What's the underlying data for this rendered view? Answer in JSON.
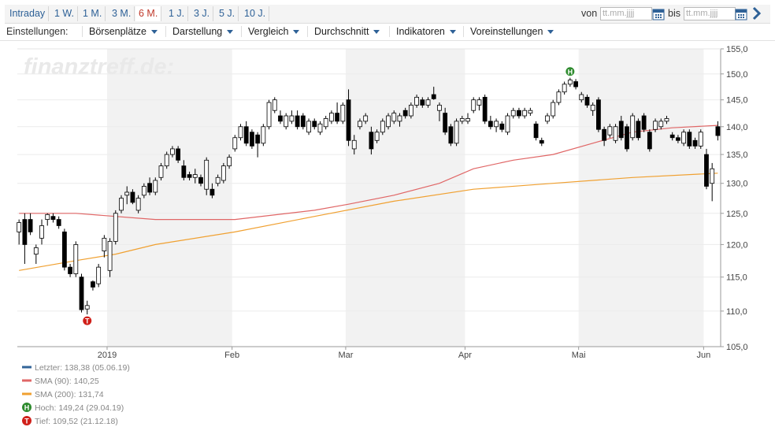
{
  "toolbar": {
    "periods": [
      "Intraday",
      "1 W.",
      "1 M.",
      "3 M.",
      "6 M.",
      "1 J.",
      "3 J.",
      "5 J.",
      "10 J."
    ],
    "active": "6 M.",
    "from_label": "von",
    "to_label": "bis",
    "date_placeholder": "tt.mm.jjjj"
  },
  "menu": {
    "label": "Einstellungen:",
    "items": [
      "Börsenplätze",
      "Darstellung",
      "Vergleich",
      "Durchschnitt",
      "Indikatoren",
      "Voreinstellungen"
    ]
  },
  "chart_data": {
    "type": "candlestick",
    "watermark": "finanztreff.de:",
    "log": true,
    "grid": true,
    "up_color": "#ffffff",
    "down_color": "#000000",
    "ylim": [
      105,
      155
    ],
    "yticks": [
      {
        "value": 105,
        "label": "105,0"
      },
      {
        "value": 110,
        "label": "110,0"
      },
      {
        "value": 115,
        "label": "115,0"
      },
      {
        "value": 120,
        "label": "120,0"
      },
      {
        "value": 125,
        "label": "125,0"
      },
      {
        "value": 130,
        "label": "130,0"
      },
      {
        "value": 135,
        "label": "135,0"
      },
      {
        "value": 140,
        "label": "140,0"
      },
      {
        "value": 145,
        "label": "145,0"
      },
      {
        "value": 150,
        "label": "150,0"
      },
      {
        "value": 155,
        "label": "155,0"
      }
    ],
    "xlim": [
      -0.3,
      123.5
    ],
    "xticks": [
      {
        "value": 15.5,
        "label": "2019"
      },
      {
        "value": 37.5,
        "label": "Feb"
      },
      {
        "value": 57.5,
        "label": "Mar"
      },
      {
        "value": 78.5,
        "label": "Apr"
      },
      {
        "value": 98.5,
        "label": "Mai"
      },
      {
        "value": 120.5,
        "label": "Jun"
      }
    ],
    "candles": [
      [
        122,
        124,
        120,
        123.5
      ],
      [
        124,
        125,
        117,
        120
      ],
      [
        124,
        125,
        121.5,
        122
      ],
      [
        118.5,
        120,
        117,
        119.5
      ],
      [
        121,
        124,
        120,
        123
      ],
      [
        124,
        125,
        123,
        124.8
      ],
      [
        124.5,
        125,
        123.5,
        124
      ],
      [
        124,
        124.5,
        122.5,
        123
      ],
      [
        122,
        122.5,
        116,
        116.5
      ],
      [
        116.5,
        117,
        115,
        115.5
      ],
      [
        115.5,
        120.5,
        115,
        120
      ],
      [
        115,
        115.5,
        109.8,
        110.2
      ],
      [
        110.3,
        111.5,
        109.52,
        110.8
      ],
      [
        114.3,
        114.5,
        113,
        113.5
      ],
      [
        114,
        117,
        113.5,
        116.5
      ],
      [
        119,
        121.5,
        118,
        121
      ],
      [
        116,
        121,
        115,
        120.5
      ],
      [
        120.5,
        125.5,
        120,
        125
      ],
      [
        125.5,
        128,
        125,
        127.5
      ],
      [
        128,
        129.5,
        126.5,
        128.5
      ],
      [
        128.5,
        129,
        126.5,
        126.8
      ],
      [
        125.5,
        128,
        125,
        127.5
      ],
      [
        128,
        130,
        127.5,
        129.5
      ],
      [
        130,
        131,
        128,
        128.5
      ],
      [
        128.5,
        131,
        128,
        130.5
      ],
      [
        131,
        133.5,
        130.5,
        133
      ],
      [
        133,
        135.5,
        132.5,
        135
      ],
      [
        135,
        136.5,
        134.5,
        136
      ],
      [
        136,
        136.5,
        133.5,
        134
      ],
      [
        133,
        134,
        130.5,
        131
      ],
      [
        131.5,
        132,
        130.5,
        131
      ],
      [
        131,
        132.5,
        130,
        131.5
      ],
      [
        131,
        131.5,
        129.5,
        130
      ],
      [
        129,
        134.5,
        128,
        134
      ],
      [
        129,
        130,
        127.5,
        128
      ],
      [
        130,
        131.5,
        129.5,
        131
      ],
      [
        130.5,
        133.5,
        130,
        133
      ],
      [
        133,
        135,
        132.5,
        134.5
      ],
      [
        136,
        138.5,
        135.5,
        138
      ],
      [
        138,
        140.5,
        137.5,
        140
      ],
      [
        140,
        141,
        136.5,
        137
      ],
      [
        139,
        139.5,
        136,
        136.5
      ],
      [
        138.5,
        139,
        134.5,
        137
      ],
      [
        137,
        140.5,
        136.5,
        140
      ],
      [
        140,
        145,
        139.5,
        144.5
      ],
      [
        143,
        145.5,
        142.5,
        145
      ],
      [
        142,
        143,
        140.5,
        141
      ],
      [
        140,
        142.5,
        139.5,
        142
      ],
      [
        141,
        143,
        140.5,
        142
      ],
      [
        142,
        143,
        139.5,
        140
      ],
      [
        142,
        142.5,
        139.5,
        140
      ],
      [
        139,
        141.5,
        138.5,
        141
      ],
      [
        141,
        141.5,
        139.5,
        140
      ],
      [
        139,
        141,
        138.5,
        140.5
      ],
      [
        140,
        142,
        139.5,
        141.5
      ],
      [
        141,
        143,
        140.5,
        142.5
      ],
      [
        142.5,
        144.5,
        140.5,
        141
      ],
      [
        141,
        144.5,
        140.5,
        144
      ],
      [
        145,
        147,
        136.5,
        137.5
      ],
      [
        136,
        138.5,
        135,
        137.5
      ],
      [
        140,
        141.5,
        139.5,
        141
      ],
      [
        141,
        142.5,
        140.5,
        142
      ],
      [
        139,
        140,
        135,
        136
      ],
      [
        137.5,
        139.5,
        137,
        139
      ],
      [
        139,
        141.5,
        138.5,
        141
      ],
      [
        140,
        142.5,
        139.5,
        142
      ],
      [
        141,
        143,
        140.5,
        142.5
      ],
      [
        141,
        142.5,
        140,
        142
      ],
      [
        143,
        143.5,
        141.5,
        142
      ],
      [
        142,
        144.5,
        141.5,
        144
      ],
      [
        144,
        146,
        143.5,
        145.5
      ],
      [
        145,
        145.5,
        143.5,
        144
      ],
      [
        144,
        145.5,
        143.5,
        145
      ],
      [
        146,
        147.5,
        145,
        145.2
      ],
      [
        143,
        144.5,
        141,
        144
      ],
      [
        142.5,
        143.5,
        138.5,
        139
      ],
      [
        140,
        140.5,
        136.5,
        137
      ],
      [
        137,
        141.5,
        136.5,
        141
      ],
      [
        141,
        142,
        140.5,
        141.5
      ],
      [
        141,
        142.5,
        140.5,
        141.5
      ],
      [
        143,
        145.5,
        142.5,
        145
      ],
      [
        144,
        145.5,
        143,
        145
      ],
      [
        145.5,
        146,
        140.5,
        141
      ],
      [
        141,
        142,
        139.5,
        140
      ],
      [
        140,
        141.5,
        139,
        141
      ],
      [
        140.5,
        141,
        139,
        139.5
      ],
      [
        139,
        142.5,
        138.5,
        142
      ],
      [
        142,
        143.5,
        141.5,
        143
      ],
      [
        143,
        143.5,
        141.5,
        142
      ],
      [
        142,
        143.5,
        141.5,
        143
      ],
      [
        142.5,
        143.5,
        142,
        143
      ],
      [
        140.5,
        141,
        137.5,
        138
      ],
      [
        137.5,
        138,
        136.5,
        137
      ],
      [
        141,
        142.5,
        140.5,
        142
      ],
      [
        142,
        145,
        141.5,
        144.5
      ],
      [
        144.5,
        147,
        144,
        146.5
      ],
      [
        146.5,
        148.5,
        146,
        148
      ],
      [
        148,
        149.24,
        147.5,
        148.8
      ],
      [
        148.5,
        149,
        147,
        147.5
      ],
      [
        145,
        146.5,
        144.5,
        146
      ],
      [
        145.5,
        146,
        143.5,
        144
      ],
      [
        143,
        144.5,
        142,
        144
      ],
      [
        145,
        145.5,
        139,
        139.5
      ],
      [
        139.5,
        140,
        136.5,
        137.5
      ],
      [
        138.5,
        140.5,
        138,
        140
      ],
      [
        137.5,
        140.5,
        137,
        140
      ],
      [
        141,
        142,
        137.5,
        138
      ],
      [
        140,
        140.5,
        135.5,
        136
      ],
      [
        138,
        142.5,
        137.5,
        142
      ],
      [
        141,
        141.5,
        137.5,
        138
      ],
      [
        142,
        142.5,
        139,
        139.5
      ],
      [
        139,
        139.5,
        135.5,
        136
      ],
      [
        139.5,
        141.5,
        139,
        141
      ],
      [
        140,
        141.5,
        139.5,
        141
      ],
      [
        141,
        142,
        140.5,
        141.5
      ],
      [
        138.5,
        139,
        137.5,
        138
      ],
      [
        138,
        138.5,
        137,
        137.5
      ],
      [
        137,
        139.5,
        136.5,
        139
      ],
      [
        139,
        139.5,
        136,
        136.5
      ],
      [
        137.5,
        138,
        136,
        136.5
      ],
      [
        136.5,
        139.5,
        136,
        139
      ],
      [
        135,
        136,
        129,
        129.5
      ],
      [
        130,
        133.5,
        127,
        132.5
      ],
      [
        140,
        141,
        137.5,
        138.38
      ]
    ],
    "overlays": [
      {
        "color": "#e06666",
        "x": [
          0,
          10,
          24,
          38,
          52,
          58,
          66,
          74,
          80,
          87,
          94,
          101,
          108,
          115,
          123
        ],
        "values": [
          125,
          125,
          124,
          124,
          125.5,
          126.5,
          128,
          130,
          132.5,
          134,
          135,
          137,
          139,
          139.8,
          140.25
        ]
      },
      {
        "color": "#f0a030",
        "x": [
          0,
          10,
          17,
          24,
          38,
          52,
          66,
          80,
          94,
          108,
          123
        ],
        "values": [
          116,
          117.5,
          118.5,
          120,
          122,
          124.5,
          127,
          129,
          130,
          131,
          131.74
        ]
      }
    ],
    "markers": [
      {
        "label": "H",
        "x": 97,
        "value": 149.24,
        "color": "#2e8b2e",
        "side": "top"
      },
      {
        "label": "T",
        "x": 12,
        "value": 109.52,
        "color": "#d0201a",
        "side": "bottom"
      }
    ],
    "legend": [
      {
        "label": "Letzter: 138,38 (05.06.19)",
        "color": "#336699",
        "kind": "line"
      },
      {
        "label": "SMA (90): 140,25",
        "color": "#e06666",
        "kind": "line"
      },
      {
        "label": "SMA (200): 131,74",
        "color": "#f0a030",
        "kind": "line"
      },
      {
        "label": "Hoch: 149,24 (29.04.19)",
        "color": "#2e8b2e",
        "kind": "H"
      },
      {
        "label": "Tief: 109,52 (21.12.18)",
        "color": "#d0201a",
        "kind": "T"
      }
    ]
  }
}
